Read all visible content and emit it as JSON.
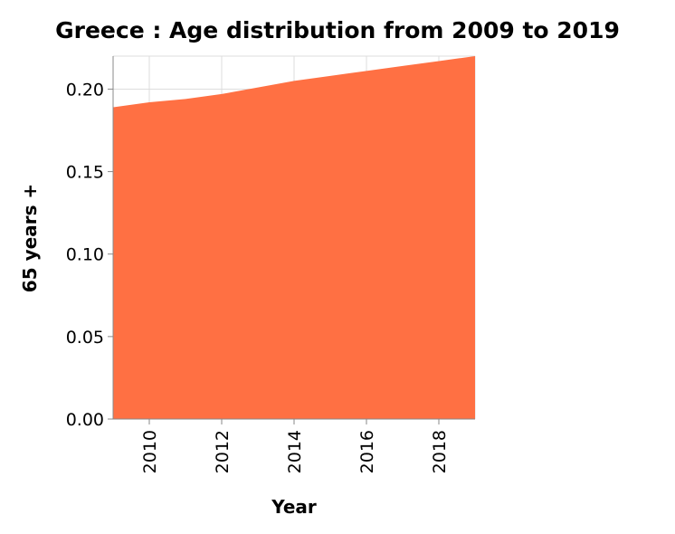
{
  "chart_data": {
    "type": "area",
    "title": "Greece : Age distribution from 2009 to 2019",
    "xlabel": "Year",
    "ylabel": "65 years +",
    "x": [
      2009,
      2010,
      2011,
      2012,
      2013,
      2014,
      2015,
      2016,
      2017,
      2018,
      2019
    ],
    "values": [
      0.189,
      0.192,
      0.194,
      0.197,
      0.201,
      0.205,
      0.208,
      0.211,
      0.214,
      0.217,
      0.22
    ],
    "xlim": [
      2009,
      2019
    ],
    "ylim": [
      0,
      0.22
    ],
    "xticks": [
      "2010",
      "2012",
      "2014",
      "2016",
      "2018"
    ],
    "yticks": [
      "0.00",
      "0.05",
      "0.10",
      "0.15",
      "0.20"
    ],
    "grid": true,
    "color": "#ff7043"
  }
}
